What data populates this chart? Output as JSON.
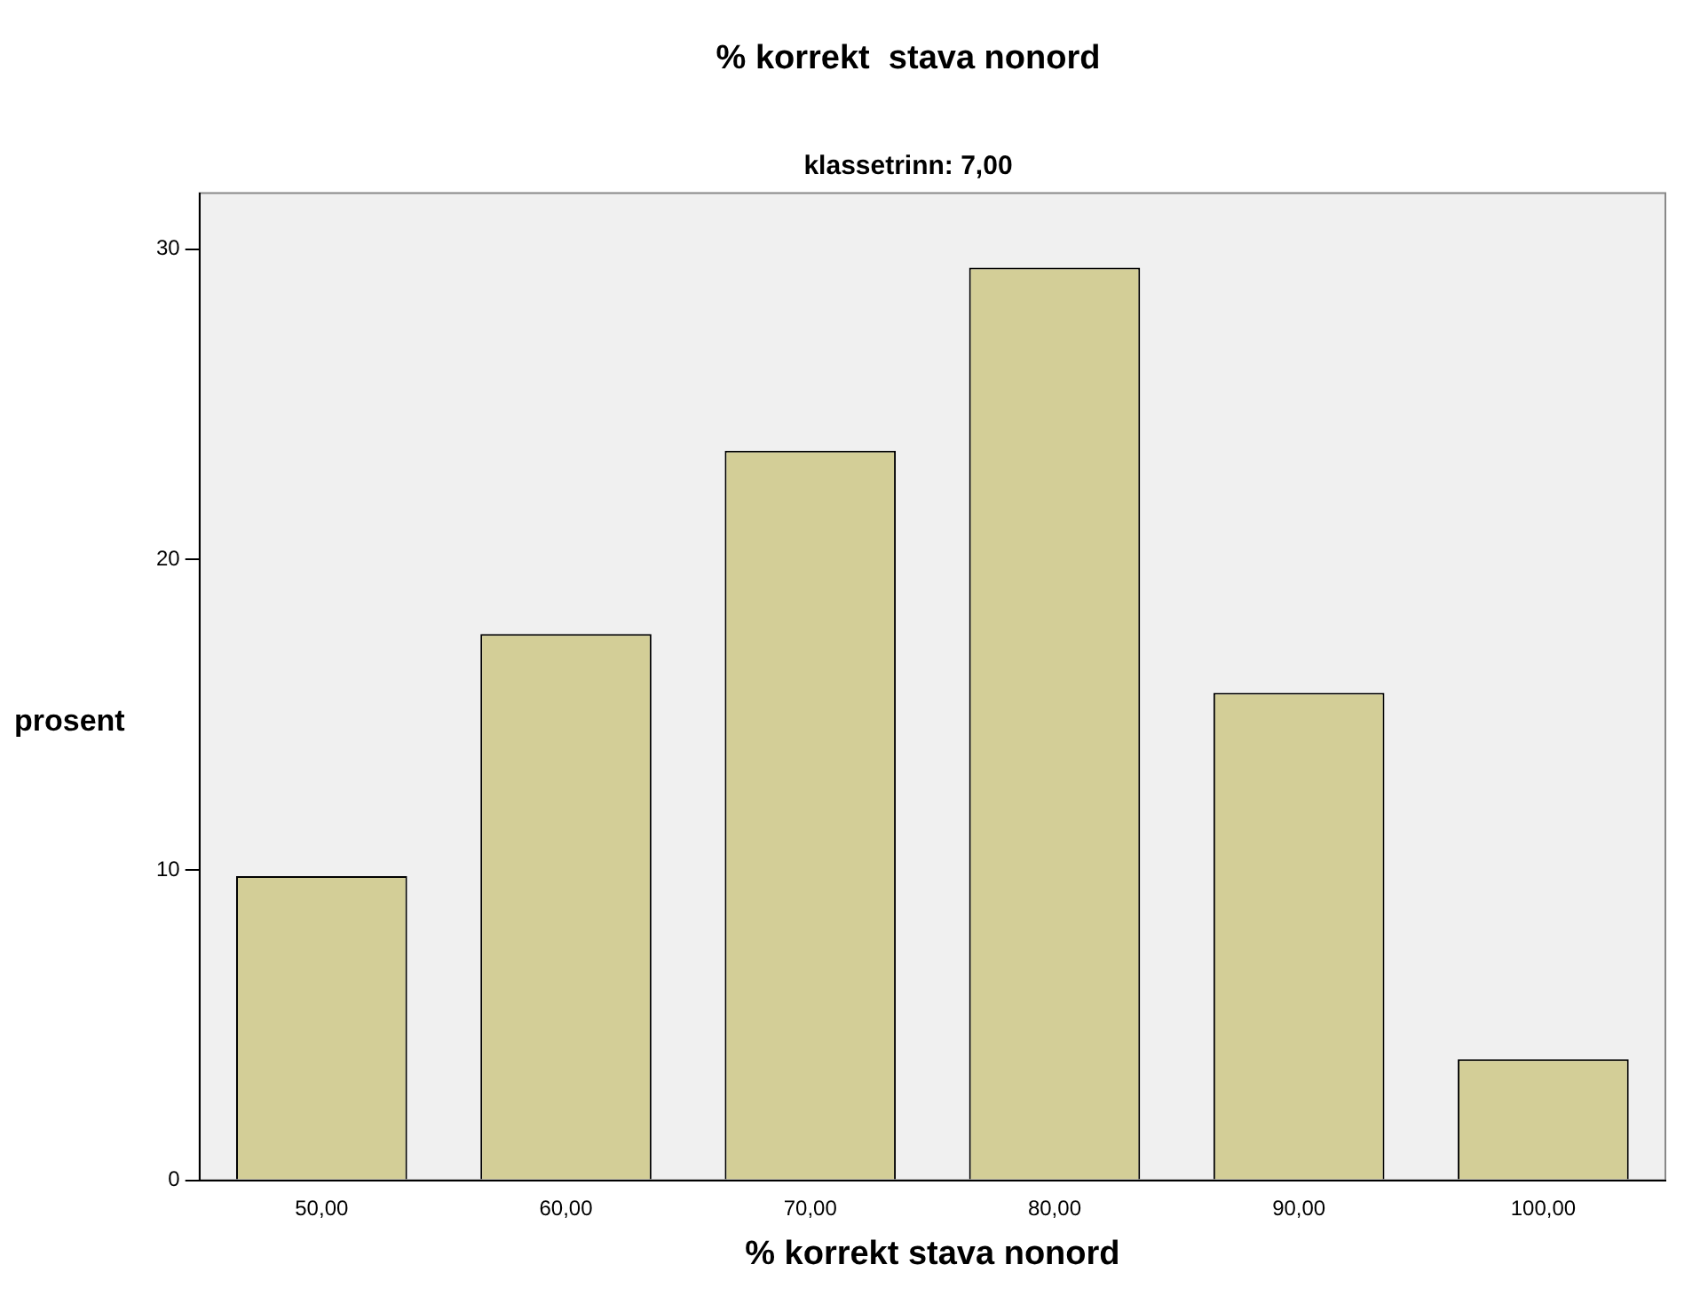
{
  "chart_data": {
    "type": "bar",
    "title": "% korrekt  stava nonord",
    "subtitle": "klassetrinn: 7,00",
    "xlabel": "% korrekt stava nonord",
    "ylabel": "prosent",
    "categories": [
      "50,00",
      "60,00",
      "70,00",
      "80,00",
      "90,00",
      "100,00"
    ],
    "values": [
      9.8,
      17.6,
      23.5,
      29.4,
      15.7,
      3.9
    ],
    "color": "#d3ce97",
    "ylim": [
      0,
      31.8
    ],
    "yticks": [
      0,
      10,
      20,
      30
    ],
    "grid": false,
    "legend": false
  }
}
